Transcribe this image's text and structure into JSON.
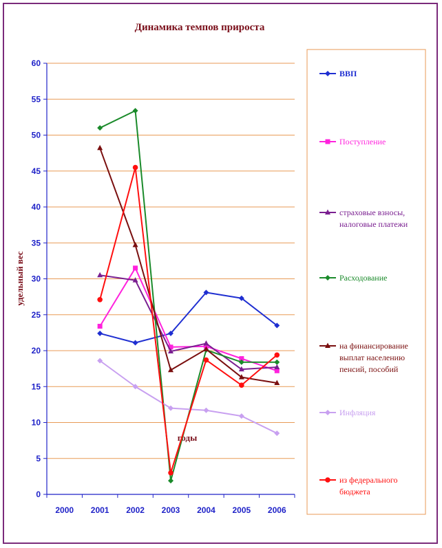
{
  "chart_data": {
    "type": "line",
    "title": "Динамика темпов прироста",
    "xlabel": "годы",
    "ylabel": "удельный вес",
    "categories": [
      "2000",
      "2001",
      "2002",
      "2003",
      "2004",
      "2005",
      "2006"
    ],
    "y_ticks": [
      "0",
      "5",
      "10",
      "15",
      "20",
      "25",
      "30",
      "35",
      "40",
      "45",
      "50",
      "55",
      "60"
    ],
    "ylim": [
      0,
      60
    ],
    "grid": true,
    "legend_position": "right",
    "series": [
      {
        "name": "ВВП",
        "color": "#1f2fd1",
        "marker": "diamond",
        "values": [
          null,
          22.4,
          21.1,
          22.4,
          28.1,
          27.3,
          23.5
        ]
      },
      {
        "name": "Поступление",
        "color": "#ff22dd",
        "marker": "square",
        "values": [
          null,
          23.4,
          31.5,
          20.5,
          20.6,
          18.9,
          17.2
        ]
      },
      {
        "name": "страховые взносы, налоговые платежи",
        "color": "#7a1f90",
        "marker": "triangle",
        "values": [
          null,
          30.5,
          29.8,
          19.9,
          21.0,
          17.4,
          17.7
        ]
      },
      {
        "name": "Расходование",
        "color": "#1a8a2a",
        "marker": "diamond",
        "values": [
          null,
          51.0,
          53.4,
          1.9,
          20.1,
          18.4,
          18.4
        ]
      },
      {
        "name": "на финансирование выплат населению пенсий, пособий",
        "color": "#7a0f0f",
        "marker": "triangle",
        "values": [
          null,
          48.2,
          34.7,
          17.3,
          20.2,
          16.3,
          15.5
        ]
      },
      {
        "name": "Инфляция",
        "color": "#c8a0f0",
        "marker": "diamond",
        "values": [
          null,
          18.6,
          15.0,
          12.0,
          11.7,
          10.9,
          8.5
        ]
      },
      {
        "name": "из федерального бюджета",
        "color": "#ff0f0f",
        "marker": "circle",
        "values": [
          null,
          27.1,
          45.5,
          3.0,
          18.7,
          15.2,
          19.4
        ]
      }
    ]
  }
}
